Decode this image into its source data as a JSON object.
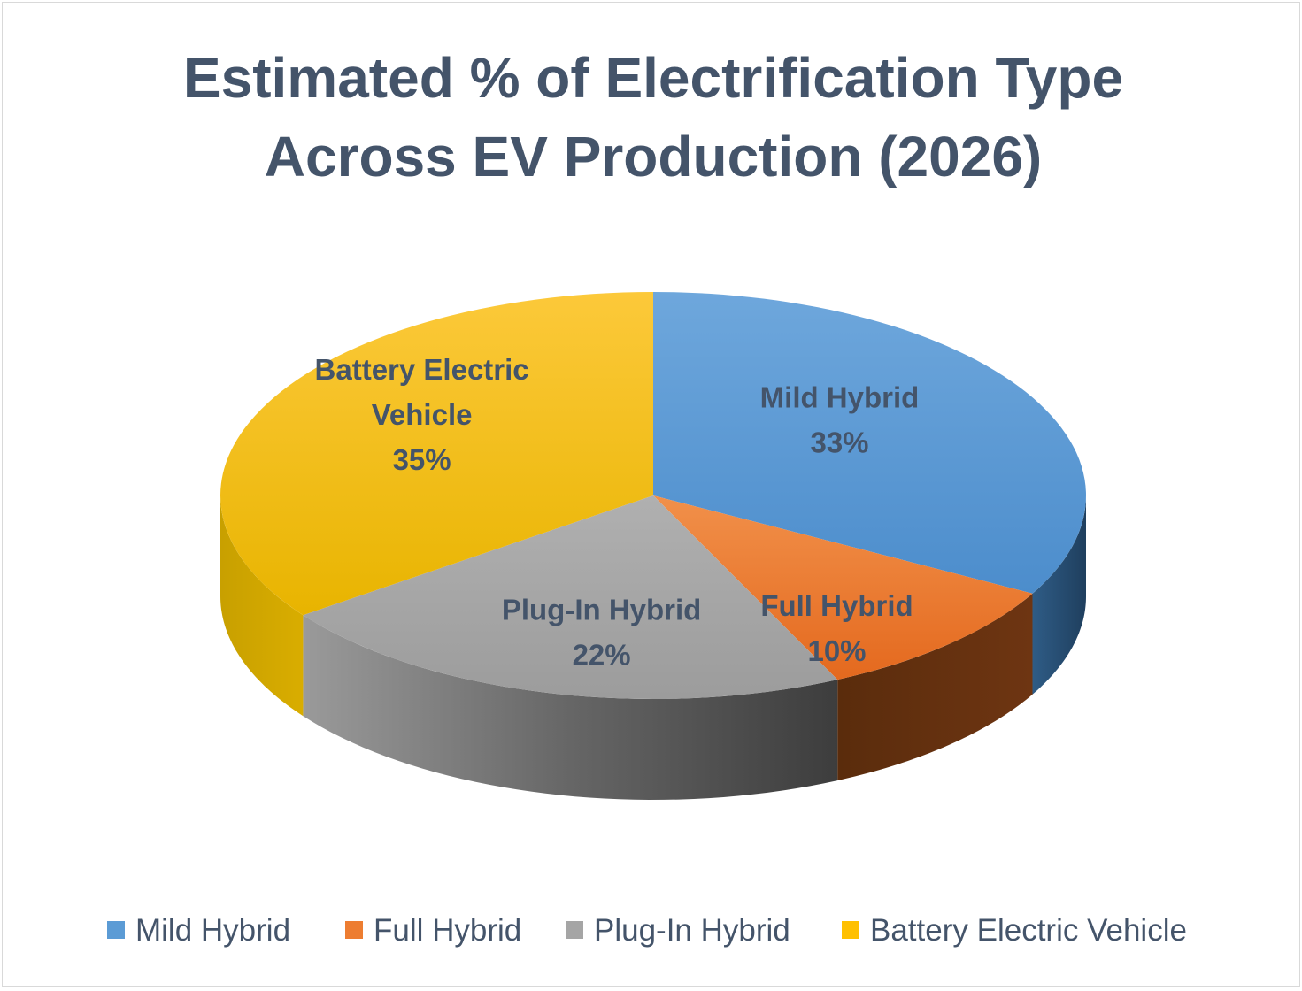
{
  "chart_data": {
    "type": "pie",
    "title_lines": [
      "Estimated % of Electrification Type",
      "Across EV Production (2026)"
    ],
    "series": [
      {
        "name": "Mild Hybrid",
        "value": 33,
        "label": "33%",
        "label_lines": [
          "Mild Hybrid",
          "33%"
        ],
        "color": "#5b9bd5"
      },
      {
        "name": "Full Hybrid",
        "value": 10,
        "label": "10%",
        "label_lines": [
          "Full Hybrid",
          "10%"
        ],
        "color": "#ed7d31"
      },
      {
        "name": "Plug-In Hybrid",
        "value": 22,
        "label": "22%",
        "label_lines": [
          "Plug-In Hybrid",
          "22%"
        ],
        "color": "#a5a5a5"
      },
      {
        "name": "Battery Electric Vehicle",
        "value": 35,
        "label": "35%",
        "label_lines": [
          "Battery Electric",
          "Vehicle",
          "35%"
        ],
        "color": "#ffc000"
      }
    ],
    "legend": {
      "position": "bottom",
      "items": [
        "Mild Hybrid",
        "Full Hybrid",
        "Plug-In Hybrid",
        "Battery Electric Vehicle"
      ]
    },
    "style": "3d"
  }
}
